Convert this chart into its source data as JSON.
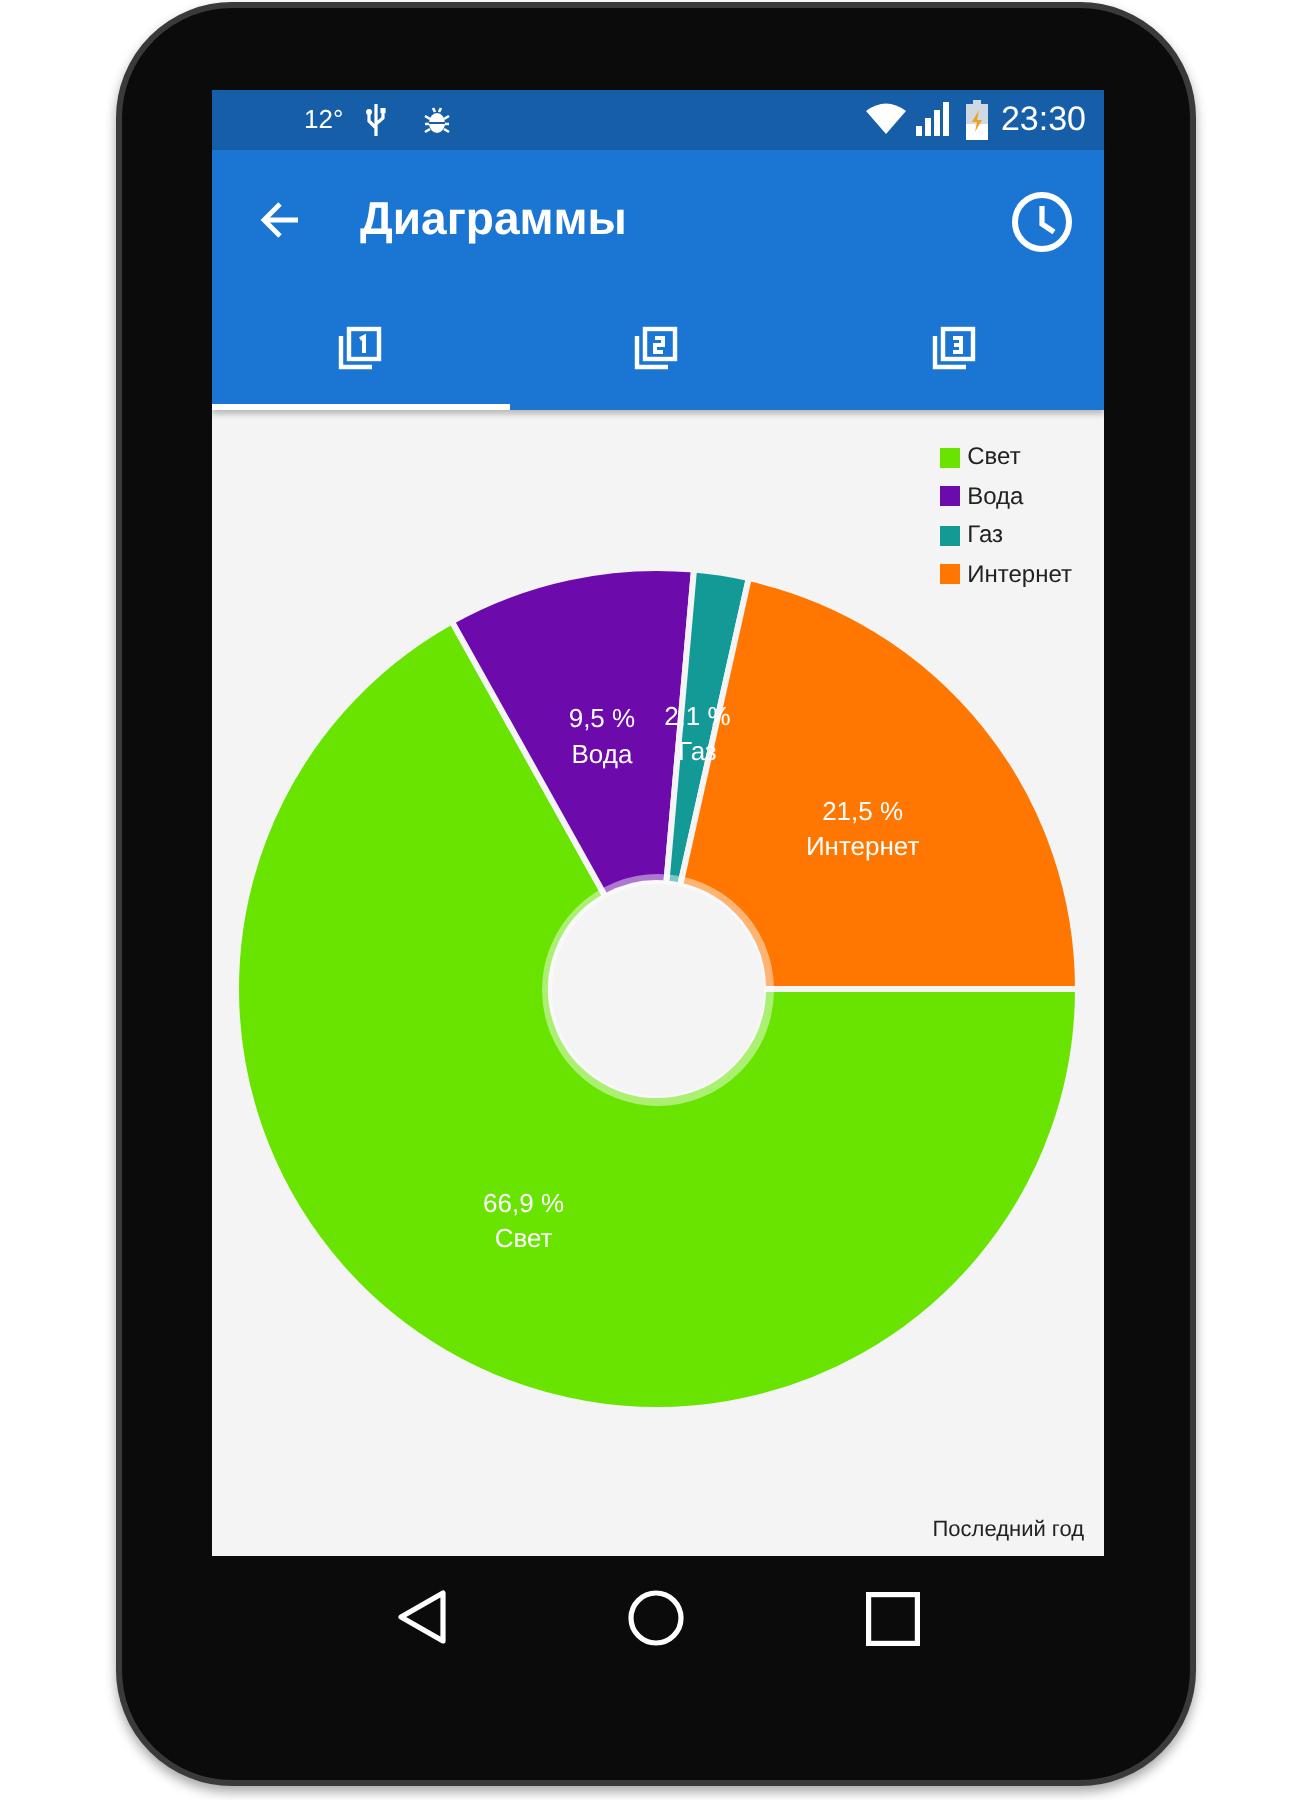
{
  "chart_data": {
    "type": "donut",
    "title": "Диаграммы",
    "categories": [
      "Свет",
      "Вода",
      "Газ",
      "Интернет"
    ],
    "values": [
      66.9,
      9.5,
      2.1,
      21.5
    ],
    "colors": [
      "#68e400",
      "#6c0aab",
      "#139a97",
      "#ff7700"
    ],
    "value_labels": [
      "66,9 %",
      "9,5 %",
      "2,1 %",
      "21,5 %"
    ],
    "legend": "top right",
    "annotations": [
      "Последний год",
      "12°",
      "23:30"
    ]
  }
}
